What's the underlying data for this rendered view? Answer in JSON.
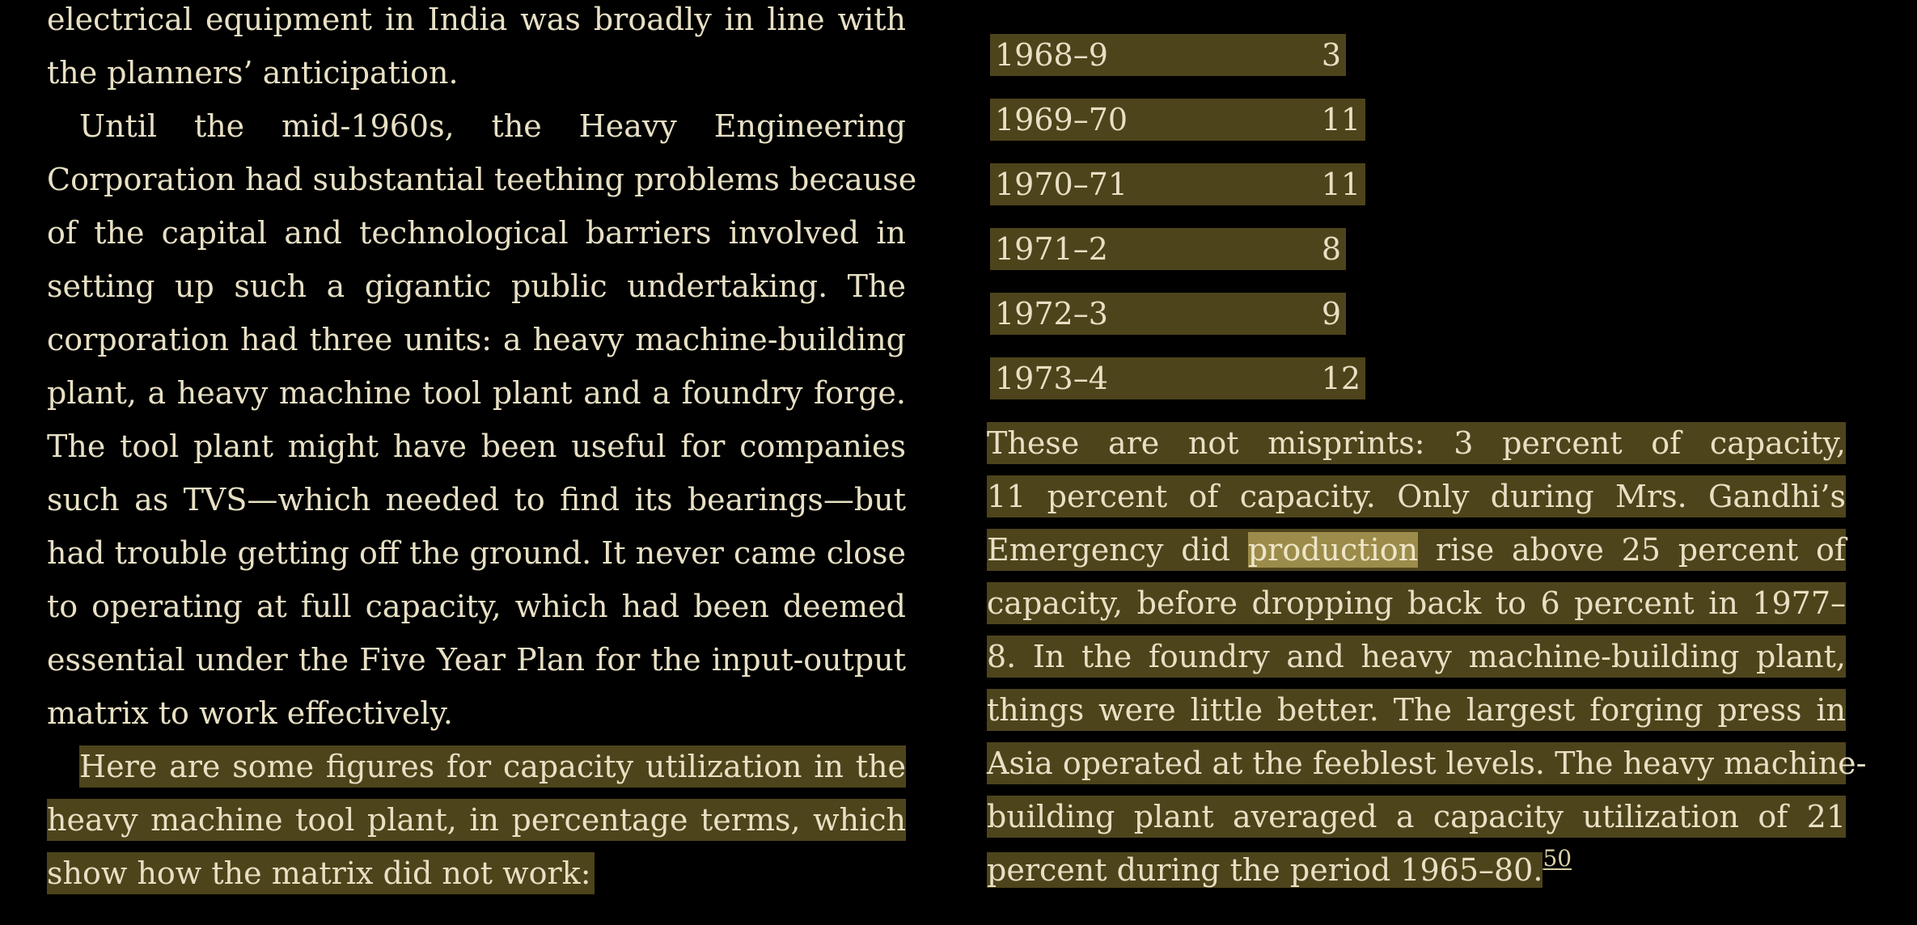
{
  "left_column": {
    "lines": [
      "electrical equipment in India was broadly in line with",
      "the planners’ anticipation.",
      "Until the mid-1960s, the Heavy Engineering",
      "Corporation had substantial teething problems because",
      "of the capital and technological barriers involved in",
      "setting up such a gigantic public undertaking. The",
      "corporation had three units: a heavy machine-building",
      "plant, a heavy machine tool plant and a foundry forge.",
      "The tool plant might have been useful for companies",
      "such as TVS—which needed to find its bearings—but",
      "had trouble getting off the ground. It never came close",
      "to operating at full capacity, which had been deemed",
      "essential under the Five Year Plan for the input-output",
      "matrix to work effectively.",
      "Here are some figures for capacity utilization in the",
      "heavy machine tool plant, in percentage terms, which",
      "show how the matrix did not work:"
    ]
  },
  "capacity_table": {
    "rows": [
      {
        "year": "1968–9",
        "value": "3"
      },
      {
        "year": "1969–70",
        "value": "11"
      },
      {
        "year": "1970–71",
        "value": "11"
      },
      {
        "year": "1971–2",
        "value": "8"
      },
      {
        "year": "1972–3",
        "value": "9"
      },
      {
        "year": "1973–4",
        "value": "12"
      }
    ]
  },
  "right_column": {
    "line1": "These are not misprints: 3 percent of capacity,",
    "line2": "11 percent of capacity. Only during Mrs. Gandhi’s",
    "line3_before": "Emergency did ",
    "line3_word": "production",
    "line3_after": " rise above 25 percent of",
    "line4": "capacity, before dropping back to 6 percent in 1977–",
    "line5": "8. In the foundry and heavy machine-building plant,",
    "line6": "things were little better. The largest forging press in",
    "line7": "Asia operated at the feeblest levels. The heavy machine-",
    "line8": "building plant averaged a capacity utilization of 21",
    "line9": "percent during the period 1965–80.",
    "footnote_ref": "50"
  },
  "colors": {
    "background": "#000000",
    "text": "#e8e0c4",
    "highlight": "#4e441b",
    "selected_word": "#9c8c4b"
  }
}
